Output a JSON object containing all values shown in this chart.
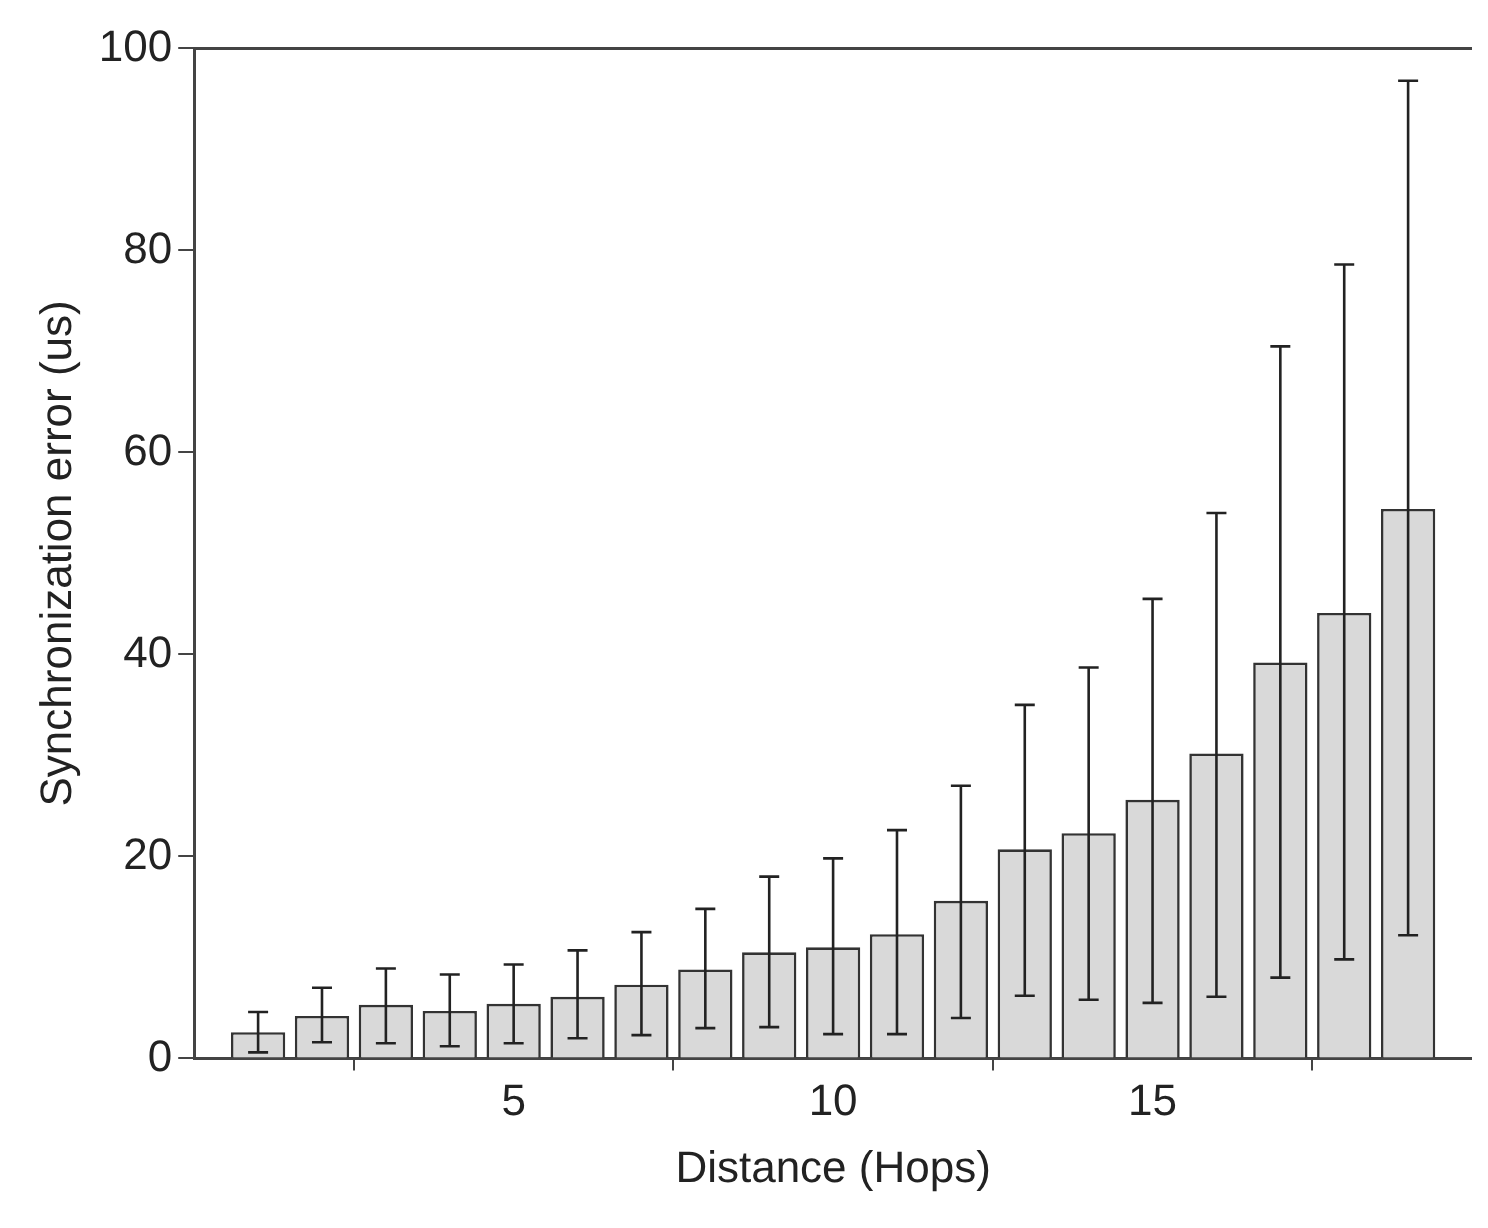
{
  "chart_data": {
    "type": "bar",
    "xlabel": "Distance (Hops)",
    "ylabel": "Synchronization error (us)",
    "x": [
      1,
      2,
      3,
      4,
      5,
      6,
      7,
      8,
      9,
      10,
      11,
      12,
      13,
      14,
      15,
      16,
      17,
      18,
      19
    ],
    "values": [
      2.6,
      4.2,
      5.3,
      4.7,
      5.4,
      6.1,
      7.3,
      8.8,
      10.5,
      11.0,
      12.3,
      15.6,
      20.7,
      22.3,
      25.6,
      30.2,
      39.2,
      44.1,
      54.4
    ],
    "errors": [
      [
        0.6,
        4.6
      ],
      [
        1.6,
        7.0
      ],
      [
        1.5,
        8.9
      ],
      [
        1.2,
        8.3
      ],
      [
        1.5,
        9.3
      ],
      [
        2.0,
        10.7
      ],
      [
        2.3,
        12.5
      ],
      [
        3.0,
        14.8
      ],
      [
        3.1,
        18.0
      ],
      [
        2.4,
        19.8
      ],
      [
        2.4,
        22.6
      ],
      [
        4.0,
        27.0
      ],
      [
        6.2,
        35.0
      ],
      [
        5.8,
        38.7
      ],
      [
        5.5,
        45.5
      ],
      [
        6.1,
        54.0
      ],
      [
        8.0,
        70.5
      ],
      [
        9.8,
        78.6
      ],
      [
        12.2,
        96.8
      ]
    ],
    "color": "#d9d9d9",
    "xlim": [
      0,
      20
    ],
    "xticks": [
      5,
      10,
      15
    ],
    "ylim": [
      0,
      100
    ],
    "yticks": [
      0,
      20,
      40,
      60,
      80,
      100
    ],
    "grid": false,
    "legend": false
  }
}
